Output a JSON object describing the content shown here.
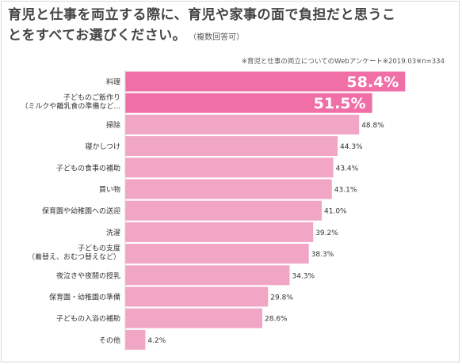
{
  "title": {
    "line1": "育児と仕事を両立する際に、育児や家事の面で負担だと思うこ",
    "line2": "とをすべてお選びください。",
    "note": "（複数回答可）"
  },
  "source": "※育児と仕事の両立についてのWebアンケート※2019.03※n=334",
  "colors": {
    "highlight": "#f06fa7",
    "normal": "#f2a6c6",
    "gridline": "#d0d0d0"
  },
  "chart_data": {
    "type": "bar",
    "orientation": "horizontal",
    "unit": "%",
    "categories": [
      [
        "料理"
      ],
      [
        "子どものご飯作り",
        "（ミルクや離乳食の準備など..."
      ],
      [
        "掃除"
      ],
      [
        "寝かしつけ"
      ],
      [
        "子どもの食事の補助"
      ],
      [
        "買い物"
      ],
      [
        "保育園や幼稚園への送迎"
      ],
      [
        "洗濯"
      ],
      [
        "子どもの支度",
        "（着替え、おむつ替えなど）"
      ],
      [
        "夜泣きや夜間の授乳"
      ],
      [
        "保育園・幼稚園の準備"
      ],
      [
        "子どもの入浴の補助"
      ],
      [
        "その他"
      ]
    ],
    "values": [
      58.4,
      51.5,
      48.8,
      44.3,
      43.4,
      43.1,
      41.0,
      39.2,
      38.3,
      34.3,
      29.8,
      28.6,
      4.2
    ],
    "value_labels": [
      "58.4%",
      "51.5%",
      "48.8%",
      "44.3%",
      "43.4%",
      "43.1%",
      "41.0%",
      "39.2%",
      "38.3%",
      "34.3%",
      "29.8%",
      "28.6%",
      "4.2%"
    ],
    "highlighted": [
      true,
      true,
      false,
      false,
      false,
      false,
      false,
      false,
      false,
      false,
      false,
      false,
      false
    ],
    "xlim": [
      0,
      60
    ]
  }
}
